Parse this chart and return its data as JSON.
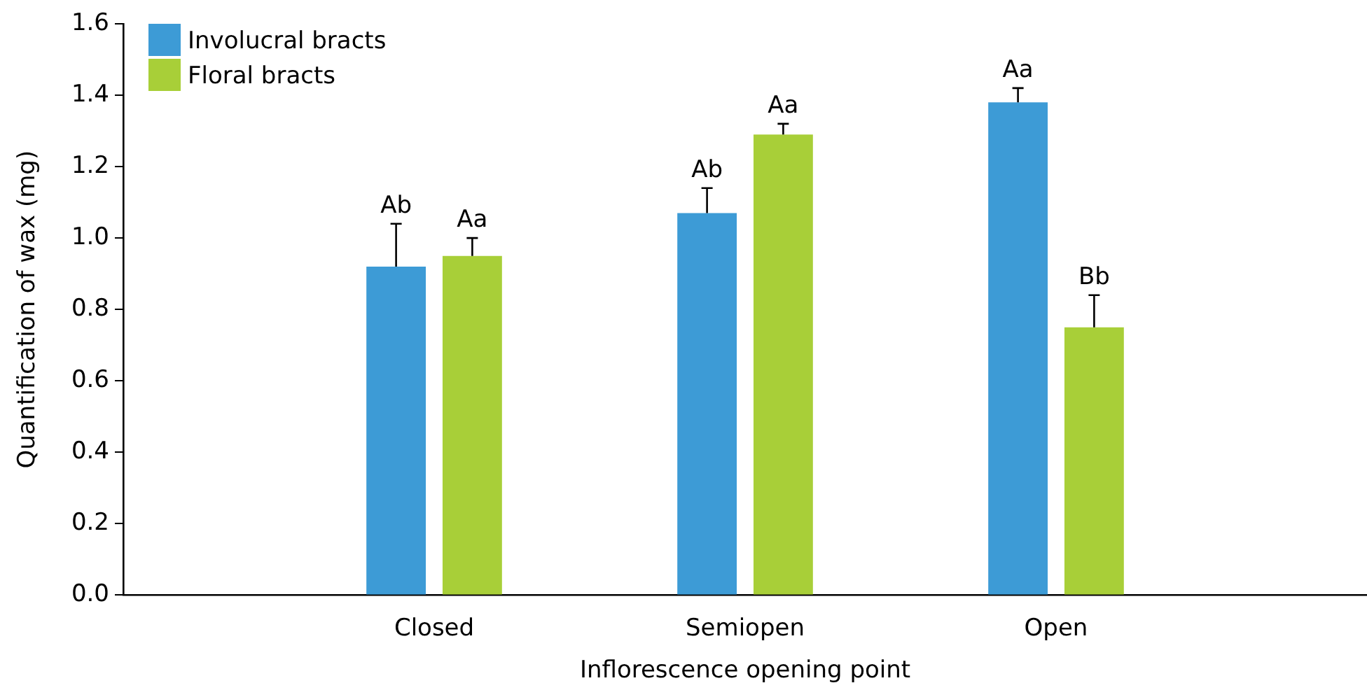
{
  "chart_data": {
    "type": "bar",
    "xlabel": "Inflorescence opening point",
    "ylabel": "Quantification of wax (mg)",
    "categories": [
      "Closed",
      "Semiopen",
      "Open"
    ],
    "series": [
      {
        "name": "Involucral bracts",
        "color": "#3d9bd6",
        "values": [
          0.92,
          1.07,
          1.38
        ],
        "errors": [
          [
            0.92,
            1.04
          ],
          [
            1.07,
            1.14
          ],
          [
            1.38,
            1.42
          ]
        ],
        "value_labels": [
          "Ab",
          "Ab",
          "Aa"
        ]
      },
      {
        "name": "Floral bracts",
        "color": "#a8cf38",
        "values": [
          0.95,
          1.29,
          0.75
        ],
        "errors": [
          [
            0.95,
            1.0
          ],
          [
            1.29,
            1.32
          ],
          [
            0.75,
            0.84
          ]
        ],
        "value_labels": [
          "Aa",
          "Aa",
          "Bb"
        ]
      }
    ],
    "ylim": [
      0,
      1.6
    ],
    "yticks": [
      {
        "value": 0,
        "label": "0.0"
      },
      {
        "value": 0.2,
        "label": "0.2"
      },
      {
        "value": 0.4,
        "label": "0.4"
      },
      {
        "value": 0.6,
        "label": "0.6"
      },
      {
        "value": 0.8,
        "label": "0.8"
      },
      {
        "value": 1,
        "label": "1.0"
      },
      {
        "value": 1.2,
        "label": "1.2"
      },
      {
        "value": 1.4,
        "label": "1.4"
      },
      {
        "value": 1.6,
        "label": "1.6"
      }
    ],
    "grid": false,
    "legend": "top left"
  }
}
